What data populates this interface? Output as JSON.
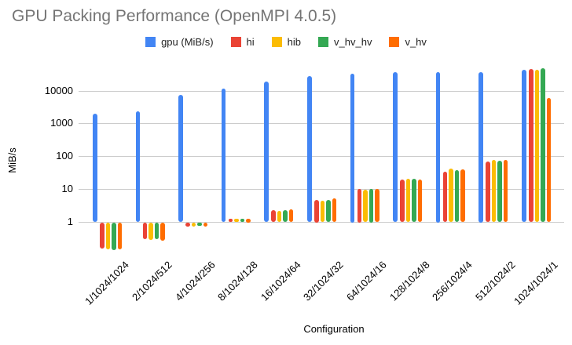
{
  "chart_data": {
    "type": "bar",
    "title": "GPU Packing Performance (OpenMPI 4.0.5)",
    "xlabel": "Configuration",
    "ylabel": "MiB/s",
    "y_scale": "log",
    "grid": true,
    "legend_position": "top",
    "ylim": [
      0.1,
      55000
    ],
    "y_ticks": [
      1,
      10,
      100,
      1000,
      10000
    ],
    "y_tick_labels": [
      "1",
      "10",
      "100",
      "1000",
      "10000"
    ],
    "categories": [
      "1/1024/1024",
      "2/1024/512",
      "4/1024/256",
      "8/1024/128",
      "16/1024/64",
      "32/1024/32",
      "64/1024/16",
      "128/1024/8",
      "256/1024/4",
      "512/1024/2",
      "1024/1024/1"
    ],
    "series": [
      {
        "name": "gpu (MiB/s)",
        "color": "#4285F4",
        "values": [
          2000,
          2300,
          7400,
          11500,
          19500,
          28500,
          34000,
          36500,
          38000,
          37000,
          43000
        ]
      },
      {
        "name": "hi",
        "color": "#EA4335",
        "values": [
          0.16,
          0.3,
          0.75,
          1.2,
          2.2,
          4.7,
          9.9,
          19,
          34,
          70,
          47000
        ]
      },
      {
        "name": "hib",
        "color": "#FBBC04",
        "values": [
          0.15,
          0.29,
          0.73,
          1.2,
          2.1,
          4.4,
          9.4,
          20,
          41,
          77,
          44000
        ]
      },
      {
        "name": "v_hv_hv",
        "color": "#34A853",
        "values": [
          0.14,
          0.3,
          0.78,
          1.2,
          2.2,
          4.6,
          9.9,
          20.5,
          38,
          71,
          49000
        ]
      },
      {
        "name": "v_hv",
        "color": "#FF6D01",
        "values": [
          0.15,
          0.28,
          0.73,
          1.25,
          2.4,
          5.0,
          10,
          19,
          39,
          75,
          6100
        ]
      }
    ]
  }
}
